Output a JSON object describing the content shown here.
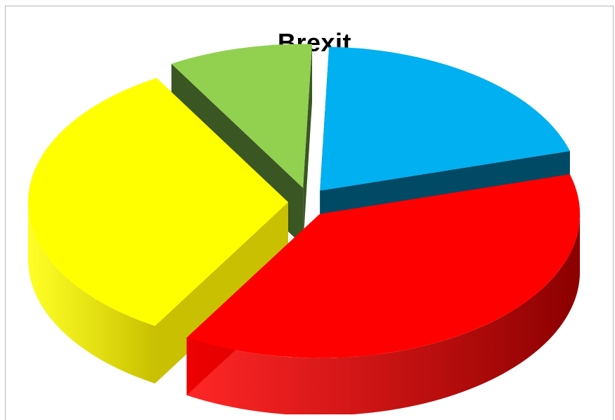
{
  "chart_data": {
    "type": "pie",
    "style": "3d-exploded",
    "title": "Brexit",
    "categories": [
      "",
      "",
      "",
      ""
    ],
    "values": [
      20,
      38,
      33,
      9
    ],
    "colors": {
      "top": [
        "#00b0f0",
        "#ff0000",
        "#ffff00",
        "#92d050"
      ],
      "side": [
        "#004a66",
        "#8b0000",
        "#c8c000",
        "#3a5622"
      ]
    },
    "legend": "none",
    "data_labels": "none"
  }
}
